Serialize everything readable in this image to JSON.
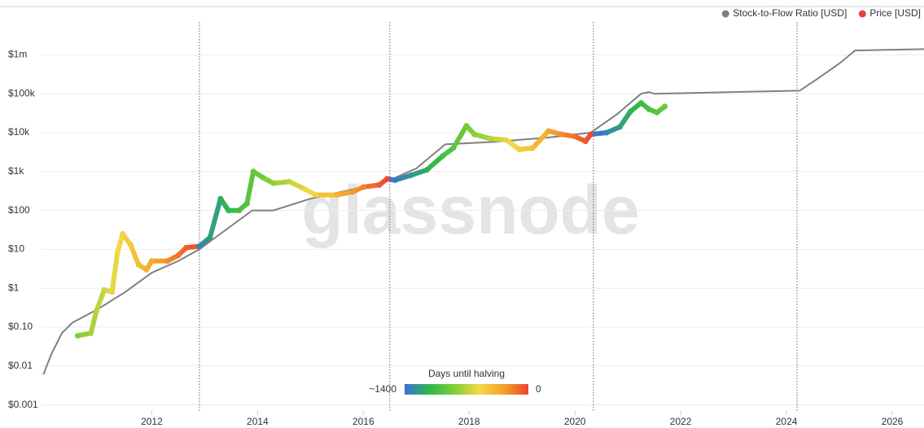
{
  "chart_data": {
    "type": "line",
    "watermark": "glassnode",
    "log_y": true,
    "grid": true,
    "xlim": [
      2009.9,
      2026.6
    ],
    "xticks": [
      2012,
      2014,
      2016,
      2018,
      2020,
      2022,
      2024,
      2026
    ],
    "ylim": [
      0.0007,
      7000000
    ],
    "yticks": [
      {
        "value": 0.001,
        "label": "$0.001"
      },
      {
        "value": 0.01,
        "label": "$0.01"
      },
      {
        "value": 0.1,
        "label": "$0.10"
      },
      {
        "value": 1,
        "label": "$1"
      },
      {
        "value": 10,
        "label": "$10"
      },
      {
        "value": 100,
        "label": "$100"
      },
      {
        "value": 1000,
        "label": "$1k"
      },
      {
        "value": 10000,
        "label": "$10k"
      },
      {
        "value": 100000,
        "label": "$100k"
      },
      {
        "value": 1000000,
        "label": "$1m"
      }
    ],
    "halvings": [
      2012.9,
      2016.5,
      2020.35,
      2024.2
    ],
    "legend_position": "top-right",
    "series": [
      {
        "name": "Stock-to-Flow Ratio [USD]",
        "color": "#808080",
        "x": [
          2009.95,
          2010.1,
          2010.3,
          2010.5,
          2011.0,
          2011.5,
          2012.0,
          2012.5,
          2012.9,
          2013.2,
          2013.9,
          2014.3,
          2015.0,
          2016.0,
          2016.5,
          2017.0,
          2017.55,
          2018.5,
          2019.5,
          2020.3,
          2020.8,
          2021.25,
          2021.4,
          2021.5,
          2024.25,
          2024.6,
          2025.0,
          2025.3,
          2026.6
        ],
        "values": [
          0.006,
          0.02,
          0.07,
          0.13,
          0.3,
          0.8,
          2.5,
          5,
          10,
          20,
          100,
          100,
          200,
          400,
          600,
          1200,
          5000,
          5800,
          7500,
          10000,
          30000,
          100000,
          110000,
          100000,
          120000,
          250000,
          600000,
          1300000,
          1400000
        ]
      },
      {
        "name": "Price [USD]",
        "color": "#e8423a",
        "x": [
          2010.6,
          2010.85,
          2010.95,
          2011.1,
          2011.25,
          2011.35,
          2011.45,
          2011.6,
          2011.75,
          2011.9,
          2012.0,
          2012.3,
          2012.5,
          2012.65,
          2012.9,
          2013.1,
          2013.3,
          2013.45,
          2013.65,
          2013.8,
          2013.92,
          2014.1,
          2014.3,
          2014.6,
          2014.9,
          2015.1,
          2015.5,
          2015.8,
          2016.0,
          2016.3,
          2016.45,
          2016.6,
          2016.9,
          2017.2,
          2017.5,
          2017.7,
          2017.95,
          2018.1,
          2018.4,
          2018.7,
          2018.95,
          2019.2,
          2019.5,
          2019.75,
          2020.0,
          2020.2,
          2020.3,
          2020.6,
          2020.85,
          2021.05,
          2021.25,
          2021.4,
          2021.55,
          2021.7
        ],
        "values": [
          0.06,
          0.07,
          0.25,
          0.9,
          0.8,
          8,
          25,
          13,
          4,
          3,
          5,
          5,
          7,
          11,
          12,
          20,
          200,
          100,
          100,
          150,
          1000,
          700,
          500,
          550,
          350,
          250,
          250,
          300,
          400,
          450,
          650,
          600,
          800,
          1100,
          2500,
          4000,
          15000,
          9000,
          7000,
          6500,
          3700,
          4000,
          11000,
          9000,
          8000,
          6000,
          9000,
          10000,
          14000,
          35000,
          58000,
          40000,
          33000,
          47000
        ]
      }
    ],
    "colorbar": {
      "title": "Days until halving",
      "min": 1400,
      "min_label": "~1400",
      "max": 0,
      "colors": [
        "#3a6fd8",
        "#2fb84c",
        "#7fcf35",
        "#f3d845",
        "#f5a12a",
        "#ee4231"
      ]
    }
  }
}
